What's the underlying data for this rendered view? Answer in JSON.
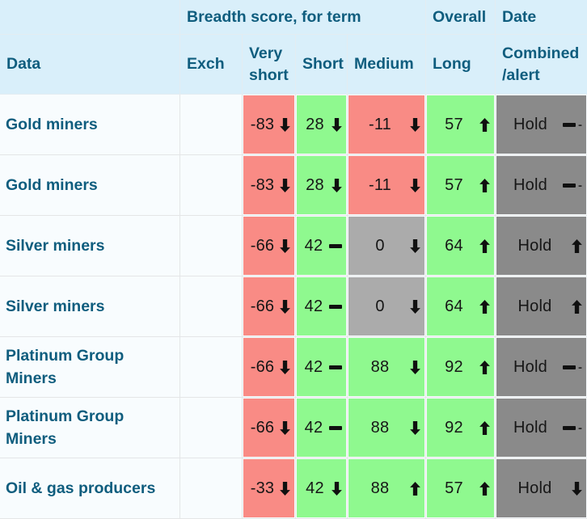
{
  "table": {
    "group_header": {
      "corner": "",
      "breadth": "Breadth score, for term",
      "overall": "Overall",
      "date": "Date"
    },
    "columns": {
      "data": "Data",
      "exch": "Exch",
      "very_short": "Very short",
      "short": "Short",
      "medium": "Medium",
      "long": "Long",
      "combined": "Combined /alert"
    },
    "rows": [
      {
        "label": "Gold miners",
        "exch": "",
        "cells": [
          {
            "value": "-83",
            "icon": "down",
            "bg": "negative"
          },
          {
            "value": "28",
            "icon": "down",
            "bg": "positive"
          },
          {
            "value": "-11",
            "icon": "down",
            "bg": "negative"
          },
          {
            "value": "57",
            "icon": "up",
            "bg": "positive"
          },
          {
            "value": "Hold",
            "icon": "minus",
            "bg": "neutral_dark",
            "edge": "-"
          }
        ]
      },
      {
        "label": "Gold miners",
        "exch": "",
        "cells": [
          {
            "value": "-83",
            "icon": "down",
            "bg": "negative"
          },
          {
            "value": "28",
            "icon": "down",
            "bg": "positive"
          },
          {
            "value": "-11",
            "icon": "down",
            "bg": "negative"
          },
          {
            "value": "57",
            "icon": "up",
            "bg": "positive"
          },
          {
            "value": "Hold",
            "icon": "minus",
            "bg": "neutral_dark",
            "edge": "-"
          }
        ]
      },
      {
        "label": "Silver miners",
        "exch": "",
        "cells": [
          {
            "value": "-66",
            "icon": "down",
            "bg": "negative"
          },
          {
            "value": "42",
            "icon": "minus",
            "bg": "positive"
          },
          {
            "value": "0",
            "icon": "down",
            "bg": "neutral_light"
          },
          {
            "value": "64",
            "icon": "up",
            "bg": "positive"
          },
          {
            "value": "Hold",
            "icon": "up",
            "bg": "neutral_dark"
          }
        ]
      },
      {
        "label": "Silver miners",
        "exch": "",
        "cells": [
          {
            "value": "-66",
            "icon": "down",
            "bg": "negative"
          },
          {
            "value": "42",
            "icon": "minus",
            "bg": "positive"
          },
          {
            "value": "0",
            "icon": "down",
            "bg": "neutral_light"
          },
          {
            "value": "64",
            "icon": "up",
            "bg": "positive"
          },
          {
            "value": "Hold",
            "icon": "up",
            "bg": "neutral_dark"
          }
        ]
      },
      {
        "label": "Platinum Group Miners",
        "exch": "",
        "cells": [
          {
            "value": "-66",
            "icon": "down",
            "bg": "negative"
          },
          {
            "value": "42",
            "icon": "minus",
            "bg": "positive"
          },
          {
            "value": "88",
            "icon": "down",
            "bg": "positive"
          },
          {
            "value": "92",
            "icon": "up",
            "bg": "positive"
          },
          {
            "value": "Hold",
            "icon": "minus",
            "bg": "neutral_dark",
            "edge": "-"
          }
        ]
      },
      {
        "label": "Platinum Group Miners",
        "exch": "",
        "cells": [
          {
            "value": "-66",
            "icon": "down",
            "bg": "negative"
          },
          {
            "value": "42",
            "icon": "minus",
            "bg": "positive"
          },
          {
            "value": "88",
            "icon": "down",
            "bg": "positive"
          },
          {
            "value": "92",
            "icon": "up",
            "bg": "positive"
          },
          {
            "value": "Hold",
            "icon": "minus",
            "bg": "neutral_dark",
            "edge": "-"
          }
        ]
      },
      {
        "label": "Oil & gas producers",
        "exch": "",
        "cells": [
          {
            "value": "-33",
            "icon": "down",
            "bg": "negative"
          },
          {
            "value": "42",
            "icon": "down",
            "bg": "positive"
          },
          {
            "value": "88",
            "icon": "up",
            "bg": "positive"
          },
          {
            "value": "57",
            "icon": "up",
            "bg": "positive"
          },
          {
            "value": "Hold",
            "icon": "down",
            "bg": "neutral_dark"
          }
        ]
      }
    ]
  },
  "colors": {
    "header_bg": "#d9effa",
    "row_bg": "#f8fcfe",
    "teal": "#0f5d7e",
    "negative": "#f98b85",
    "positive": "#8ff98f",
    "neutral_light": "#ababab",
    "neutral_dark": "#8a8a8a"
  },
  "icons": {
    "down": "down-arrow-icon",
    "up": "up-arrow-icon",
    "minus": "minus-icon"
  }
}
